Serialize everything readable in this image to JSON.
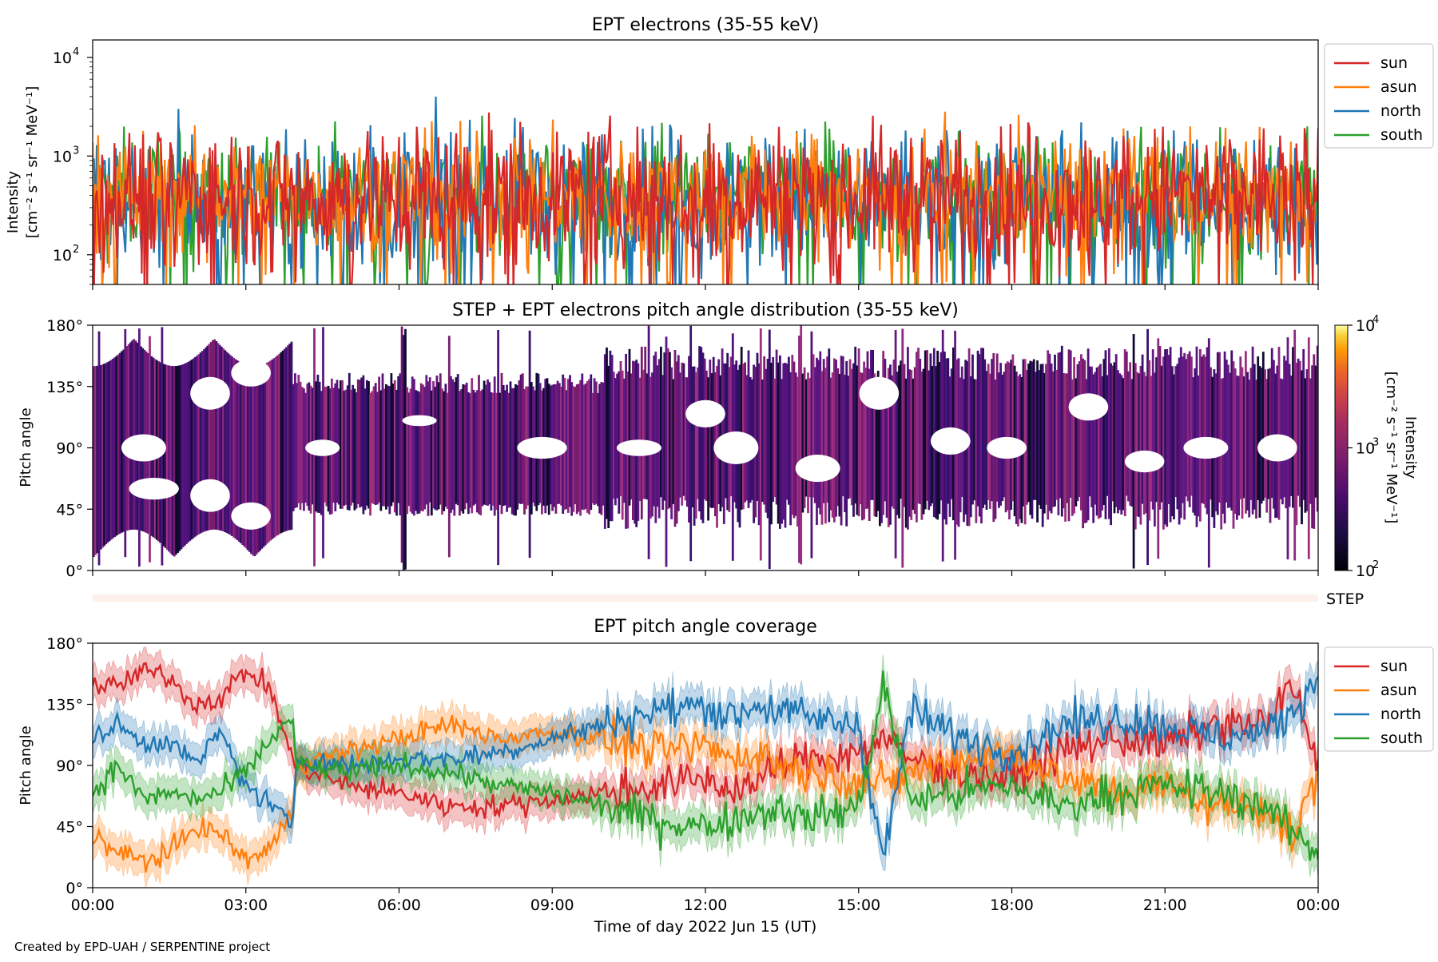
{
  "footer": "Created by EPD-UAH / SERPENTINE project",
  "x_axis": {
    "label": "Time of day 2022 Jun 15 (UT)",
    "ticks": [
      "00:00",
      "03:00",
      "06:00",
      "09:00",
      "12:00",
      "15:00",
      "18:00",
      "21:00",
      "00:00"
    ],
    "range_hours": [
      0,
      24
    ]
  },
  "series_colors": {
    "sun": "#d62728",
    "asun": "#ff7f0e",
    "north": "#1f77b4",
    "south": "#2ca02c"
  },
  "chart_data": [
    {
      "type": "line",
      "title": "EPT electrons (35-55 keV)",
      "ylabel_line1": "Intensity",
      "ylabel_line2": "[cm⁻² s⁻¹ sr⁻¹ MeV⁻¹]",
      "yscale": "log",
      "ylim": [
        50,
        15000
      ],
      "ytick_base": "10",
      "ytick_exponents": [
        "2",
        "3",
        "4"
      ],
      "legend_position": "outside-upper-right",
      "series": [
        {
          "name": "sun",
          "color": "#d62728",
          "typical": 400,
          "spread": 0.35
        },
        {
          "name": "asun",
          "color": "#ff7f0e",
          "typical": 420,
          "spread": 0.3
        },
        {
          "name": "north",
          "color": "#1f77b4",
          "typical": 380,
          "spread": 0.35
        },
        {
          "name": "south",
          "color": "#2ca02c",
          "typical": 410,
          "spread": 0.3
        }
      ],
      "note": "noisy fluctuating intensity, values mostly between 100 and 1000"
    },
    {
      "type": "heatmap",
      "title": "STEP + EPT electrons pitch angle distribution (35-55 keV)",
      "ylabel": "Pitch angle",
      "ylim": [
        0,
        180
      ],
      "yticks": [
        "0°",
        "45°",
        "90°",
        "135°",
        "180°"
      ],
      "colorbar": {
        "label_line1": "Intensity",
        "label_line2": "[cm⁻² s⁻¹ sr⁻¹ MeV⁻¹]",
        "scale": "log",
        "range": [
          100,
          10000
        ],
        "tick_base": "10",
        "tick_exponents": [
          "2",
          "3",
          "4"
        ],
        "colormap": "inferno"
      },
      "step_label": "STEP"
    },
    {
      "type": "line",
      "title": "EPT pitch angle coverage",
      "ylabel": "Pitch angle",
      "ylim": [
        0,
        180
      ],
      "yticks": [
        "0°",
        "45°",
        "90°",
        "135°",
        "180°"
      ],
      "legend_position": "outside-upper-right",
      "series": [
        {
          "name": "sun",
          "color": "#d62728",
          "x": [
            0,
            0.5,
            1,
            1.5,
            2,
            2.5,
            3,
            3.5,
            3.9,
            4,
            5,
            6,
            7,
            8,
            9,
            10,
            11,
            12,
            12.5,
            13,
            13.5,
            14,
            15,
            15.5,
            16,
            17,
            18,
            19,
            20,
            21,
            22,
            23,
            23.5,
            24
          ],
          "values": [
            150,
            148,
            160,
            155,
            135,
            140,
            160,
            145,
            95,
            90,
            75,
            70,
            60,
            60,
            65,
            70,
            75,
            80,
            72,
            78,
            90,
            95,
            100,
            110,
            95,
            85,
            80,
            100,
            110,
            105,
            120,
            120,
            150,
            90
          ]
        },
        {
          "name": "asun",
          "color": "#ff7f0e",
          "x": [
            0,
            0.5,
            1,
            1.5,
            2,
            2.5,
            3,
            3.5,
            3.9,
            4,
            5,
            6,
            7,
            8,
            9,
            10,
            11,
            12,
            12.5,
            13,
            13.5,
            14,
            15,
            15.5,
            16,
            17,
            18,
            19,
            20,
            21,
            22,
            23,
            23.5,
            24
          ],
          "values": [
            40,
            25,
            20,
            25,
            45,
            40,
            20,
            30,
            55,
            90,
            100,
            110,
            120,
            110,
            115,
            110,
            100,
            105,
            95,
            100,
            90,
            85,
            80,
            75,
            85,
            95,
            100,
            80,
            70,
            75,
            60,
            60,
            35,
            85
          ]
        },
        {
          "name": "north",
          "color": "#1f77b4",
          "x": [
            0,
            0.5,
            1,
            1.5,
            2,
            2.5,
            3,
            3.5,
            3.9,
            4,
            5,
            6,
            7,
            8,
            9,
            10,
            11,
            12,
            12.5,
            13,
            13.5,
            14,
            15,
            15.5,
            16,
            17,
            18,
            19,
            20,
            21,
            22,
            23,
            23.5,
            24
          ],
          "values": [
            110,
            120,
            105,
            110,
            90,
            115,
            75,
            60,
            45,
            95,
            90,
            95,
            95,
            100,
            110,
            120,
            130,
            135,
            125,
            135,
            130,
            125,
            120,
            20,
            130,
            110,
            100,
            120,
            125,
            120,
            110,
            115,
            130,
            155
          ]
        },
        {
          "name": "south",
          "color": "#2ca02c",
          "x": [
            0,
            0.5,
            1,
            1.5,
            2,
            2.5,
            3,
            3.5,
            3.9,
            4,
            5,
            6,
            7,
            8,
            9,
            10,
            11,
            12,
            12.5,
            13,
            13.5,
            14,
            15,
            15.5,
            16,
            17,
            18,
            19,
            20,
            21,
            22,
            23,
            23.5,
            24
          ],
          "values": [
            70,
            90,
            65,
            70,
            65,
            70,
            85,
            110,
            125,
            90,
            85,
            90,
            85,
            75,
            70,
            60,
            50,
            45,
            50,
            55,
            60,
            50,
            60,
            150,
            65,
            70,
            75,
            60,
            70,
            75,
            70,
            60,
            40,
            25
          ]
        }
      ],
      "band_halfwidth_deg": 12
    }
  ]
}
